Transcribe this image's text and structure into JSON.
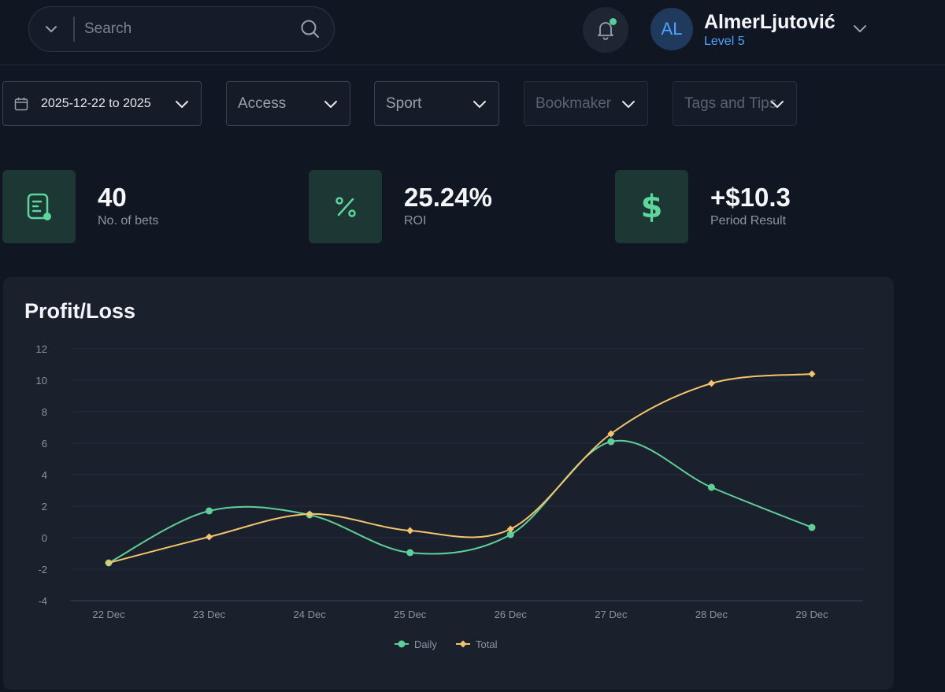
{
  "header": {
    "search_placeholder": "Search",
    "user": {
      "initials": "AL",
      "name": "AlmerLjutović",
      "level": "Level 5"
    },
    "icons": {
      "filter": "chevron-down-icon",
      "search": "search-icon",
      "notifications": "bell-icon",
      "account_menu": "chevron-down-icon"
    },
    "notification_dot_color": "#54cf97"
  },
  "filters": {
    "date_range": "2025-12-22 to 2025",
    "access": "Access",
    "sport": "Sport",
    "bookmaker": "Bookmaker",
    "tags": "Tags and Tips"
  },
  "stats": [
    {
      "icon": "receipt-icon",
      "value": "40",
      "label": "No. of bets"
    },
    {
      "icon": "percent-icon",
      "value": "25.24%",
      "label": "ROI"
    },
    {
      "icon": "dollar-icon",
      "value": "+$10.3",
      "label": "Period Result"
    }
  ],
  "colors": {
    "accent": "#5dd69c",
    "daily": "#5fcf99",
    "total": "#f2c46d",
    "level": "#4da3ff"
  },
  "chart": {
    "title": "Profit/Loss"
  },
  "chart_data": {
    "type": "line",
    "title": "Profit/Loss",
    "categories": [
      "22 Dec",
      "23 Dec",
      "24 Dec",
      "25 Dec",
      "26 Dec",
      "27 Dec",
      "28 Dec",
      "29 Dec"
    ],
    "series": [
      {
        "name": "Daily",
        "values": [
          -1.6,
          1.7,
          1.45,
          -0.95,
          0.2,
          6.1,
          3.2,
          0.65
        ]
      },
      {
        "name": "Total",
        "values": [
          -1.6,
          0.05,
          1.5,
          0.45,
          0.55,
          6.6,
          9.8,
          10.4
        ]
      }
    ],
    "ylim": [
      -4,
      12
    ],
    "yticks": [
      -4,
      -2,
      0,
      2,
      4,
      6,
      8,
      10,
      12
    ],
    "grid": true,
    "legend": "bottom-center"
  }
}
